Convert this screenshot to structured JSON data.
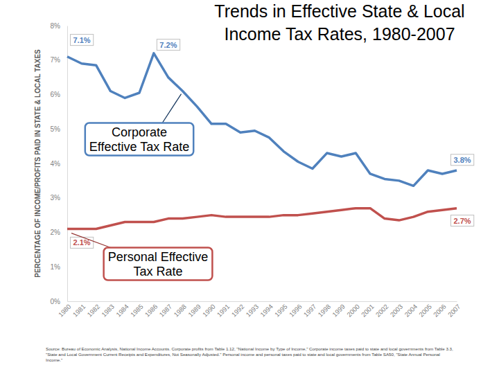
{
  "chart_data": {
    "type": "line",
    "title": "Trends in Effective State & Local Income Tax Rates, 1980-2007",
    "y_label": "PERCENTAGE OF INCOME/PROFITS PAID IN STATE & LOCAL TAXES",
    "x": [
      1980,
      1981,
      1982,
      1983,
      1984,
      1985,
      1986,
      1987,
      1988,
      1989,
      1990,
      1991,
      1992,
      1993,
      1994,
      1995,
      1996,
      1997,
      1998,
      1999,
      2000,
      2001,
      2002,
      2003,
      2004,
      2005,
      2006,
      2007
    ],
    "xlim": [
      1980,
      2007
    ],
    "xticks": [
      1980,
      1981,
      1982,
      1983,
      1984,
      1985,
      1986,
      1987,
      1988,
      1989,
      1990,
      1991,
      1992,
      1993,
      1994,
      1995,
      1996,
      1997,
      1998,
      1999,
      2000,
      2001,
      2002,
      2003,
      2004,
      2005,
      2006,
      2007
    ],
    "ylim": [
      0,
      8
    ],
    "yticks": [
      {
        "value": 0,
        "label": "0%"
      },
      {
        "value": 1,
        "label": "1%"
      },
      {
        "value": 2,
        "label": "2%"
      },
      {
        "value": 3,
        "label": "3%"
      },
      {
        "value": 4,
        "label": "4%"
      },
      {
        "value": 5,
        "label": "5%"
      },
      {
        "value": 6,
        "label": "6%"
      },
      {
        "value": 7,
        "label": "7%"
      },
      {
        "value": 8,
        "label": "8%"
      }
    ],
    "grid": false,
    "series": [
      {
        "color": "#4f81bd",
        "values": [
          7.1,
          6.9,
          6.85,
          6.1,
          5.9,
          6.05,
          7.2,
          6.5,
          6.1,
          5.65,
          5.15,
          5.15,
          4.9,
          4.95,
          4.75,
          4.35,
          4.05,
          3.85,
          4.3,
          4.2,
          4.3,
          3.7,
          3.55,
          3.5,
          3.35,
          3.8,
          3.7,
          3.8
        ],
        "value_labels": [
          "7.1%",
          null,
          null,
          null,
          null,
          null,
          "7.2%",
          null,
          null,
          null,
          null,
          null,
          null,
          null,
          null,
          null,
          null,
          null,
          null,
          null,
          null,
          null,
          null,
          null,
          null,
          null,
          null,
          "3.8%"
        ]
      },
      {
        "color": "#c0504d",
        "values": [
          2.1,
          2.1,
          2.1,
          2.2,
          2.3,
          2.3,
          2.3,
          2.4,
          2.4,
          2.45,
          2.5,
          2.45,
          2.45,
          2.45,
          2.45,
          2.5,
          2.5,
          2.55,
          2.6,
          2.65,
          2.7,
          2.7,
          2.4,
          2.35,
          2.45,
          2.6,
          2.65,
          2.7
        ],
        "value_labels": [
          "2.1%",
          null,
          null,
          null,
          null,
          null,
          null,
          null,
          null,
          null,
          null,
          null,
          null,
          null,
          null,
          null,
          null,
          null,
          null,
          null,
          null,
          null,
          null,
          null,
          null,
          null,
          null,
          "2.7%"
        ]
      }
    ],
    "annotations": [
      {
        "text": [
          "Corporate",
          "Effective Tax Rate"
        ],
        "series": 0,
        "point": 8
      },
      {
        "text": [
          "Personal Effective",
          "Tax Rate"
        ],
        "series": 1,
        "point": 0
      }
    ],
    "source": [
      "Source: Bureau of Economic Analysis, National Income Accounts. Corporate profits from Table 1.12, \"National Income by Type of Income,\" Corporate income taxes paid to state and local governments from Table 3.3,",
      "\"State and Local Government Current Receipts and Expenditures, Not Seasonally Adjusted.\" Personal income and personal taxes paid to state and local governments from Table SA50, \"State Annual Personal",
      "Income.\""
    ]
  }
}
